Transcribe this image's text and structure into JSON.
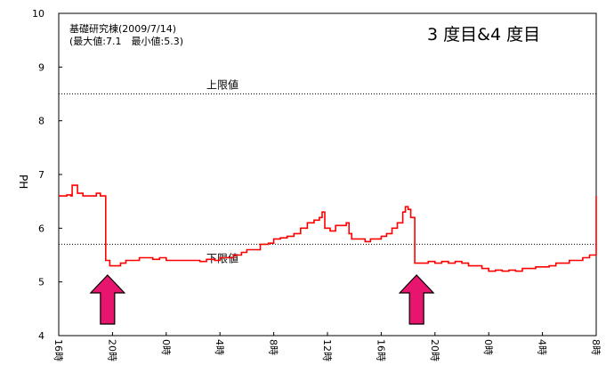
{
  "chart_data": {
    "type": "line",
    "title": "基礎研究棟(2009/7/14)",
    "subtitle": "(最大値:7.1　最小値:5.3)",
    "overlay_label": "3 度目&4 度目",
    "ylabel": "PH",
    "xlabel": "",
    "ylim": [
      4,
      10
    ],
    "yticks": [
      4,
      5,
      6,
      7,
      8,
      9,
      10
    ],
    "xlim": [
      0,
      40
    ],
    "xticks": [
      {
        "x": 0,
        "label": "16時"
      },
      {
        "x": 4,
        "label": "20時"
      },
      {
        "x": 8,
        "label": "0時"
      },
      {
        "x": 12,
        "label": "4時"
      },
      {
        "x": 16,
        "label": "8時"
      },
      {
        "x": 20,
        "label": "12時"
      },
      {
        "x": 24,
        "label": "16時"
      },
      {
        "x": 28,
        "label": "20時"
      },
      {
        "x": 32,
        "label": "0時"
      },
      {
        "x": 36,
        "label": "4時"
      },
      {
        "x": 40,
        "label": "8時"
      }
    ],
    "thresholds": [
      {
        "name": "上限値",
        "value": 8.5
      },
      {
        "name": "下限値",
        "value": 5.7
      }
    ],
    "grid": false,
    "series": [
      {
        "color": "#ff0000",
        "points": [
          [
            0,
            6.6
          ],
          [
            0.5,
            6.6
          ],
          [
            0.6,
            6.62
          ],
          [
            0.9,
            6.6
          ],
          [
            1.0,
            6.8
          ],
          [
            1.3,
            6.8
          ],
          [
            1.4,
            6.65
          ],
          [
            1.7,
            6.65
          ],
          [
            1.8,
            6.6
          ],
          [
            2.6,
            6.6
          ],
          [
            2.8,
            6.65
          ],
          [
            3.1,
            6.6
          ],
          [
            3.3,
            6.6
          ],
          [
            3.5,
            5.4
          ],
          [
            3.8,
            5.3
          ],
          [
            4.3,
            5.3
          ],
          [
            4.6,
            5.35
          ],
          [
            5.0,
            5.4
          ],
          [
            5.5,
            5.4
          ],
          [
            6.0,
            5.45
          ],
          [
            6.5,
            5.45
          ],
          [
            7.0,
            5.42
          ],
          [
            7.5,
            5.45
          ],
          [
            8.0,
            5.4
          ],
          [
            9.0,
            5.4
          ],
          [
            10.0,
            5.4
          ],
          [
            10.5,
            5.38
          ],
          [
            11.0,
            5.42
          ],
          [
            11.6,
            5.4
          ],
          [
            12.0,
            5.45
          ],
          [
            12.6,
            5.45
          ],
          [
            13.0,
            5.5
          ],
          [
            13.6,
            5.55
          ],
          [
            14.0,
            5.6
          ],
          [
            14.5,
            5.6
          ],
          [
            15.0,
            5.7
          ],
          [
            15.6,
            5.72
          ],
          [
            16.0,
            5.8
          ],
          [
            16.5,
            5.82
          ],
          [
            17.0,
            5.85
          ],
          [
            17.5,
            5.9
          ],
          [
            18.0,
            6.0
          ],
          [
            18.5,
            6.1
          ],
          [
            19.0,
            6.15
          ],
          [
            19.4,
            6.2
          ],
          [
            19.6,
            6.3
          ],
          [
            19.8,
            6.0
          ],
          [
            20.2,
            5.95
          ],
          [
            20.6,
            6.05
          ],
          [
            21.0,
            6.05
          ],
          [
            21.4,
            6.1
          ],
          [
            21.6,
            5.9
          ],
          [
            21.8,
            5.8
          ],
          [
            22.3,
            5.8
          ],
          [
            22.8,
            5.75
          ],
          [
            23.2,
            5.8
          ],
          [
            23.6,
            5.8
          ],
          [
            24.0,
            5.85
          ],
          [
            24.4,
            5.9
          ],
          [
            24.8,
            6.0
          ],
          [
            25.2,
            6.1
          ],
          [
            25.6,
            6.3
          ],
          [
            25.8,
            6.4
          ],
          [
            26.0,
            6.35
          ],
          [
            26.2,
            6.2
          ],
          [
            26.5,
            5.35
          ],
          [
            27.0,
            5.35
          ],
          [
            27.5,
            5.38
          ],
          [
            28.0,
            5.35
          ],
          [
            28.5,
            5.38
          ],
          [
            29.0,
            5.35
          ],
          [
            29.5,
            5.38
          ],
          [
            30.0,
            5.35
          ],
          [
            30.5,
            5.3
          ],
          [
            31.0,
            5.3
          ],
          [
            31.5,
            5.25
          ],
          [
            32.0,
            5.2
          ],
          [
            32.5,
            5.22
          ],
          [
            33.0,
            5.2
          ],
          [
            33.5,
            5.22
          ],
          [
            34.0,
            5.2
          ],
          [
            34.5,
            5.25
          ],
          [
            35.0,
            5.25
          ],
          [
            35.5,
            5.28
          ],
          [
            36.0,
            5.28
          ],
          [
            36.5,
            5.3
          ],
          [
            37.0,
            5.35
          ],
          [
            37.5,
            5.35
          ],
          [
            38.0,
            5.4
          ],
          [
            38.5,
            5.4
          ],
          [
            39.0,
            5.45
          ],
          [
            39.5,
            5.5
          ],
          [
            40.0,
            5.55
          ],
          [
            40.0,
            6.6
          ]
        ]
      }
    ],
    "markers": [
      {
        "type": "up-arrow",
        "x": 3.5,
        "color": "#e8156e"
      },
      {
        "type": "up-arrow",
        "x": 26.5,
        "color": "#e8156e"
      }
    ]
  }
}
